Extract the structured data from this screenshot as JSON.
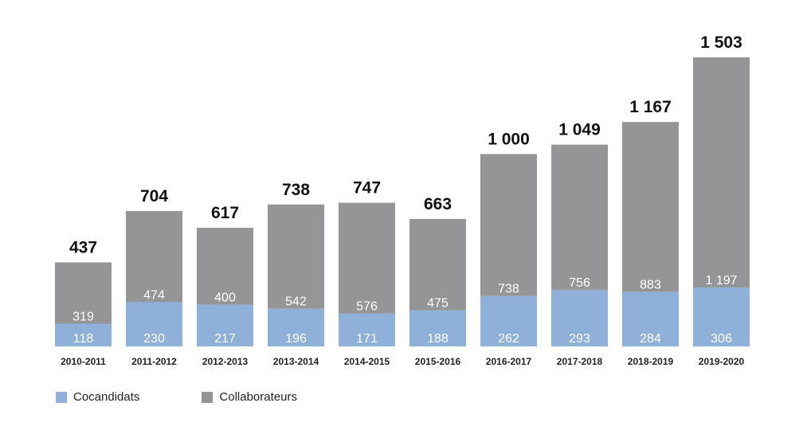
{
  "chart_data": {
    "type": "bar",
    "stacked": true,
    "categories": [
      "2010-2011",
      "2011-2012",
      "2012-2013",
      "2013-2014",
      "2014-2015",
      "2015-2016",
      "2016-2017",
      "2017-2018",
      "2018-2019",
      "2019-2020"
    ],
    "series": [
      {
        "name": "Cocandidats",
        "color": "#8fb0d8",
        "values": [
          118,
          230,
          217,
          196,
          171,
          188,
          262,
          293,
          284,
          306
        ],
        "labels": [
          "118",
          "230",
          "217",
          "196",
          "171",
          "188",
          "262",
          "293",
          "284",
          "306"
        ]
      },
      {
        "name": "Collaborateurs",
        "color": "#959597",
        "values": [
          319,
          474,
          400,
          542,
          576,
          475,
          738,
          756,
          883,
          1197
        ],
        "labels": [
          "319",
          "474",
          "400",
          "542",
          "576",
          "475",
          "738",
          "756",
          "883",
          "1 197"
        ]
      }
    ],
    "totals": [
      437,
      704,
      617,
      738,
      747,
      663,
      1000,
      1049,
      1167,
      1503
    ],
    "total_labels": [
      "437",
      "704",
      "617",
      "738",
      "747",
      "663",
      "1 000",
      "1 049",
      "1 167",
      "1 503"
    ],
    "ylim": [
      0,
      1503
    ],
    "grid": false,
    "legend_position": "bottom-left"
  }
}
